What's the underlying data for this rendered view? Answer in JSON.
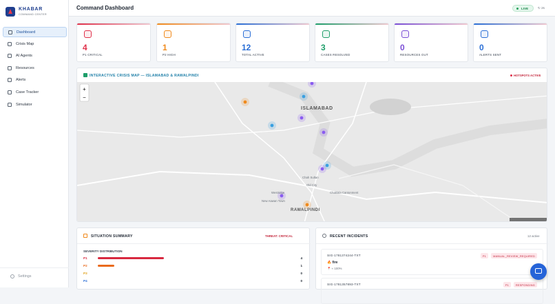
{
  "sidebar": {
    "brand": "KHABAR",
    "tagline": "COMMAND CENTER",
    "nav": [
      "Dashboard",
      "Crisis Map",
      "AI Agents",
      "Resources",
      "Alerts",
      "Case Tracker",
      "Simulator"
    ],
    "settings": "Settings"
  },
  "header": {
    "title": "Command Dashboard",
    "status": "LIVE",
    "refresh": "↻ 2s"
  },
  "stats": [
    {
      "value": 4,
      "label": "P1 CRITICAL",
      "color": "#e0304a"
    },
    {
      "value": 1,
      "label": "P2 HIGH",
      "color": "#f08a1c"
    },
    {
      "value": 12,
      "label": "TOTAL ACTIVE",
      "color": "#2b6fd6"
    },
    {
      "value": 3,
      "label": "CASES RESOLVED",
      "color": "#1e9e6a"
    },
    {
      "value": 0,
      "label": "RESOURCES OUT",
      "color": "#7b4fd6"
    },
    {
      "value": 0,
      "label": "ALERTS SENT",
      "color": "#2b6fd6"
    }
  ],
  "map": {
    "title": "INTERACTIVE CRISIS MAP — ISLAMABAD & RAWALPINDI",
    "status": "HOTSPOTS ACTIVE",
    "places": [
      "ISLAMABAD",
      "RAWALPINDI",
      "Old City",
      "Chah Sultan",
      "Chaklala Cantonment",
      "Westridge",
      "New Aawan Town"
    ]
  },
  "summary": {
    "title": "SITUATION SUMMARY",
    "threat": "THREAT: CRITICAL",
    "subtitle": "SEVERITY DISTRIBUTION",
    "rows": [
      {
        "label": "P1",
        "value": 4,
        "color": "#d8283f"
      },
      {
        "label": "P2",
        "value": 1,
        "color": "#ea6a1d"
      },
      {
        "label": "P3",
        "value": 0,
        "color": "#e0a21c"
      },
      {
        "label": "P4",
        "value": 0,
        "color": "#2b6fd6"
      }
    ]
  },
  "incidents": {
    "title": "RECENT INCIDENTS",
    "count": "12 active",
    "items": [
      {
        "id": "SIG-1781374244-TXT",
        "priority": "P1",
        "status": "MANUAL_REVIEW_REQUIRED",
        "type": "🔥 fire",
        "confidence": "📍 ≈ 100%"
      },
      {
        "id": "SIG-1781357893-TXT",
        "priority": "P1",
        "status": "RESPONDING"
      }
    ]
  }
}
